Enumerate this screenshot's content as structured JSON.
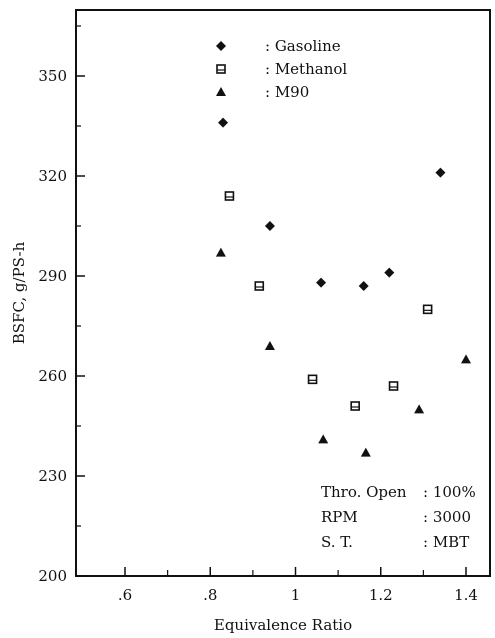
{
  "chart_data": {
    "type": "scatter",
    "xlabel": "Equivalence Ratio",
    "ylabel": "BSFC, g/PS-h",
    "xlim": [
      0.6,
      1.45
    ],
    "ylim": [
      200,
      372
    ],
    "xticks": [
      {
        "value": 0.6,
        "label": ".6"
      },
      {
        "value": 0.8,
        "label": ".8"
      },
      {
        "value": 1.0,
        "label": "1"
      },
      {
        "value": 1.2,
        "label": "1.2"
      },
      {
        "value": 1.4,
        "label": "1.4"
      }
    ],
    "yticks": [
      {
        "value": 200,
        "label": "200"
      },
      {
        "value": 230,
        "label": "230"
      },
      {
        "value": 260,
        "label": "260"
      },
      {
        "value": 290,
        "label": "290"
      },
      {
        "value": 320,
        "label": "320"
      },
      {
        "value": 350,
        "label": "350"
      }
    ],
    "grid": false,
    "legend_position": "top-center",
    "series": [
      {
        "name": "Gasoline",
        "marker": "diamond",
        "points": [
          [
            0.83,
            336
          ],
          [
            0.94,
            305
          ],
          [
            1.06,
            288
          ],
          [
            1.16,
            287
          ],
          [
            1.22,
            291
          ],
          [
            1.34,
            321
          ]
        ]
      },
      {
        "name": "Methanol",
        "marker": "square",
        "points": [
          [
            0.845,
            314
          ],
          [
            0.915,
            287
          ],
          [
            1.04,
            259
          ],
          [
            1.14,
            251
          ],
          [
            1.23,
            257
          ],
          [
            1.31,
            280
          ]
        ]
      },
      {
        "name": "M90",
        "marker": "triangle",
        "points": [
          [
            0.825,
            297
          ],
          [
            0.94,
            269
          ],
          [
            1.065,
            241
          ],
          [
            1.165,
            237
          ],
          [
            1.29,
            250
          ],
          [
            1.4,
            265
          ]
        ]
      }
    ],
    "legend_separator": ":",
    "annotations": [
      {
        "key": "Thro. Open",
        "value": "100%"
      },
      {
        "key": "RPM",
        "value": "3000"
      },
      {
        "key": "S. T.",
        "value": "MBT"
      }
    ]
  }
}
